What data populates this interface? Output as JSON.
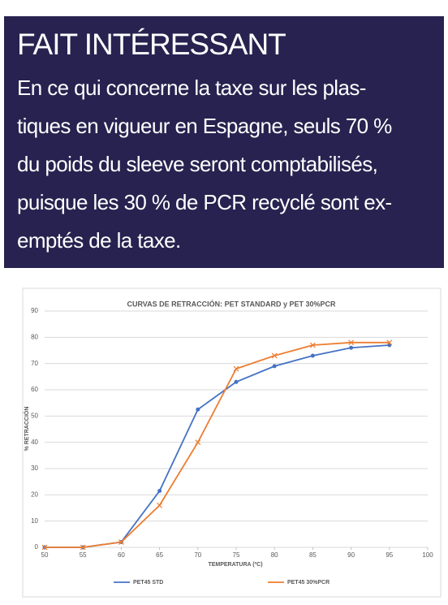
{
  "fact_box": {
    "title": "FAIT INTÉRESSANT",
    "lines": [
      "En ce qui concerne la taxe sur les plas-",
      "tiques en vigueur en Espagne, seuls 70 %",
      "du poids du sleeve seront comptabilisés,",
      "puisque les 30 % de PCR recyclé sont ex-",
      "emptés de la taxe."
    ]
  },
  "chart_data": {
    "type": "line",
    "title": "CURVAS DE RETRACCIÓN: PET STANDARD y PET 30%PCR",
    "x_label": "TEMPERATURA (ºC)",
    "y_label": "% RETRACCIÓN",
    "x": [
      50,
      55,
      60,
      65,
      70,
      75,
      80,
      85,
      90,
      95
    ],
    "series": [
      {
        "name": "PET45 STD",
        "color": "#4472c4",
        "marker": "circle",
        "values": [
          0,
          0,
          2,
          21.5,
          52.5,
          63,
          69,
          73,
          76,
          77
        ]
      },
      {
        "name": "PET45 30%PCR",
        "color": "#ed7d31",
        "marker": "x",
        "values": [
          0,
          0,
          2,
          16,
          40,
          68,
          73,
          77,
          78,
          78
        ]
      }
    ],
    "xlim": [
      50,
      100
    ],
    "xticks": [
      50,
      55,
      60,
      65,
      70,
      75,
      80,
      85,
      90,
      95,
      100
    ],
    "ylim": [
      0,
      90
    ],
    "yticks": [
      0,
      10,
      20,
      30,
      40,
      50,
      60,
      70,
      80,
      90
    ],
    "grid": true,
    "legend": "bottom"
  }
}
